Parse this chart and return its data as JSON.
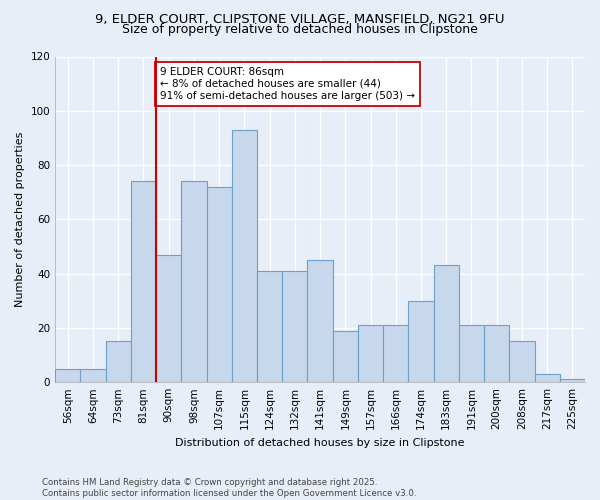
{
  "title_line1": "9, ELDER COURT, CLIPSTONE VILLAGE, MANSFIELD, NG21 9FU",
  "title_line2": "Size of property relative to detached houses in Clipstone",
  "xlabel": "Distribution of detached houses by size in Clipstone",
  "ylabel": "Number of detached properties",
  "bar_labels": [
    "56sqm",
    "64sqm",
    "73sqm",
    "81sqm",
    "90sqm",
    "98sqm",
    "107sqm",
    "115sqm",
    "124sqm",
    "132sqm",
    "141sqm",
    "149sqm",
    "157sqm",
    "166sqm",
    "174sqm",
    "183sqm",
    "191sqm",
    "200sqm",
    "208sqm",
    "217sqm",
    "225sqm"
  ],
  "bar_values": [
    5,
    5,
    15,
    74,
    47,
    74,
    72,
    93,
    41,
    41,
    45,
    19,
    21,
    21,
    30,
    43,
    21,
    21,
    15,
    3,
    1
  ],
  "bar_color": "#c8d8ec",
  "bar_edge_color": "#6ba0c8",
  "vline_x": 3.5,
  "vline_color": "#cc0000",
  "annotation_text": "9 ELDER COURT: 86sqm\n← 8% of detached houses are smaller (44)\n91% of semi-detached houses are larger (503) →",
  "annotation_box_color": "white",
  "annotation_box_edge": "#cc0000",
  "ylim": [
    0,
    120
  ],
  "yticks": [
    0,
    20,
    40,
    60,
    80,
    100,
    120
  ],
  "bg_color": "#e8eef8",
  "plot_bg_color": "#e8eef8",
  "footer_text": "Contains HM Land Registry data © Crown copyright and database right 2025.\nContains public sector information licensed under the Open Government Licence v3.0.",
  "grid_color": "#ffffff",
  "title_fontsize": 9.5,
  "axis_label_fontsize": 8,
  "tick_fontsize": 7.5,
  "annotation_fontsize": 7.5,
  "footer_fontsize": 6.2
}
